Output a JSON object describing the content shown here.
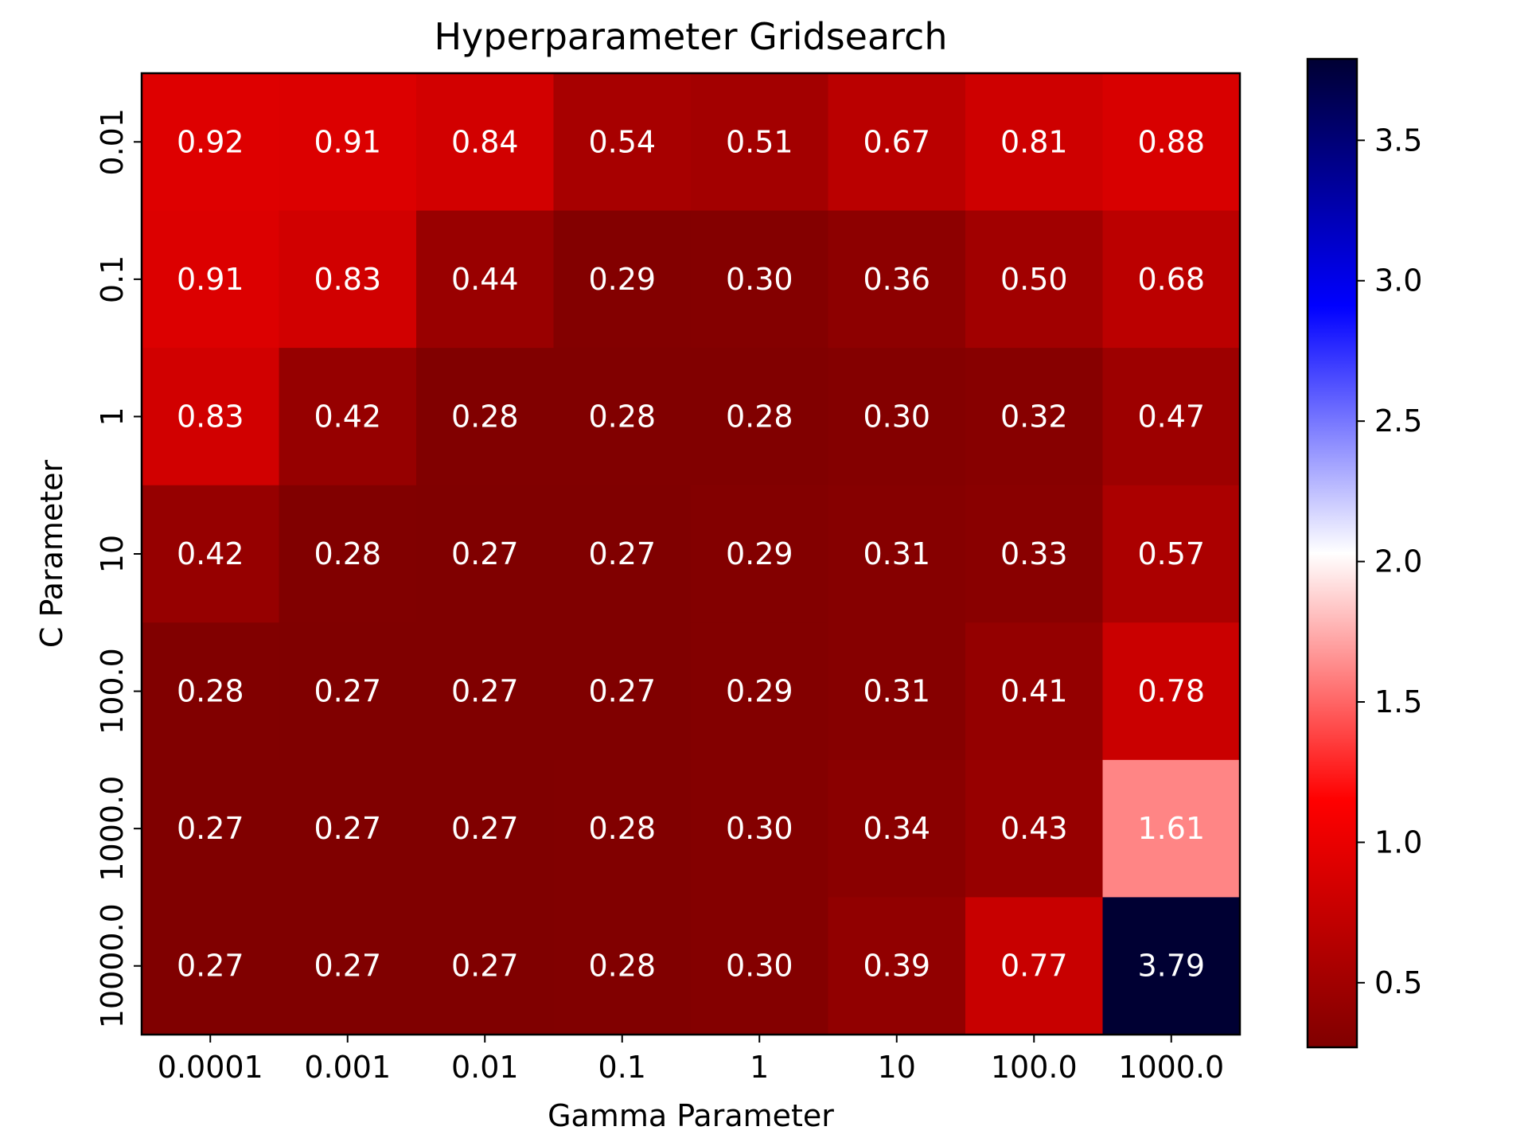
{
  "chart_data": {
    "type": "heatmap",
    "title": "Hyperparameter Gridsearch",
    "xlabel": "Gamma Parameter",
    "ylabel": "C Parameter",
    "x_categories": [
      "0.0001",
      "0.001",
      "0.01",
      "0.1",
      "1",
      "10",
      "100.0",
      "1000.0"
    ],
    "y_categories": [
      "0.01",
      "0.1",
      "1",
      "10",
      "100.0",
      "1000.0",
      "10000.0"
    ],
    "values": [
      [
        0.92,
        0.91,
        0.84,
        0.54,
        0.51,
        0.67,
        0.81,
        0.88
      ],
      [
        0.91,
        0.83,
        0.44,
        0.29,
        0.3,
        0.36,
        0.5,
        0.68
      ],
      [
        0.83,
        0.42,
        0.28,
        0.28,
        0.28,
        0.3,
        0.32,
        0.47
      ],
      [
        0.42,
        0.28,
        0.27,
        0.27,
        0.29,
        0.31,
        0.33,
        0.57
      ],
      [
        0.28,
        0.27,
        0.27,
        0.27,
        0.29,
        0.31,
        0.41,
        0.78
      ],
      [
        0.27,
        0.27,
        0.27,
        0.28,
        0.3,
        0.34,
        0.43,
        1.61
      ],
      [
        0.27,
        0.27,
        0.27,
        0.28,
        0.3,
        0.39,
        0.77,
        3.79
      ]
    ],
    "colormap": "seismic",
    "colorbar": {
      "range": [
        0.27,
        3.79
      ],
      "ticks": [
        "0.5",
        "1.0",
        "1.5",
        "2.0",
        "2.5",
        "3.0",
        "3.5"
      ],
      "gradient_colors": [
        "#000033",
        "#0000ff",
        "#ffffff",
        "#ff0000",
        "#800000"
      ]
    },
    "annotation_color": "#ffffff",
    "grid": false
  }
}
